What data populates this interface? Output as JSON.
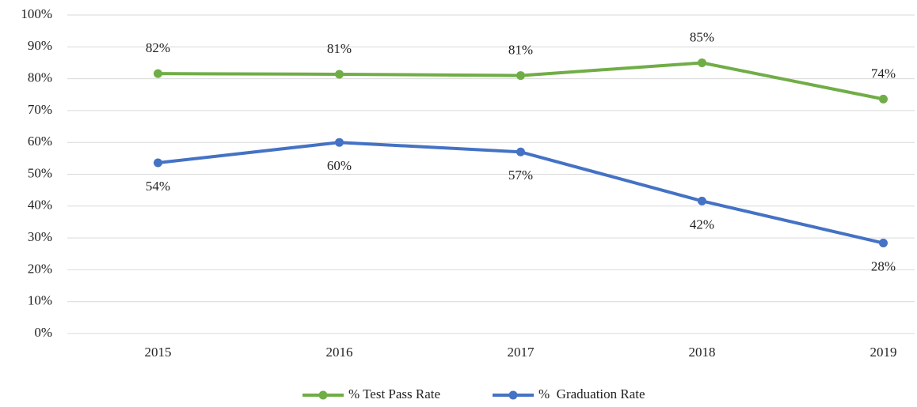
{
  "chart_data": {
    "type": "line",
    "categories": [
      "2015",
      "2016",
      "2017",
      "2018",
      "2019"
    ],
    "series": [
      {
        "name": "% Test Pass Rate",
        "color": "#70ad47",
        "values": [
          81.6,
          81.4,
          81,
          85,
          73.6
        ],
        "value_labels": [
          "82%",
          "81%",
          "81%",
          "85%",
          "74%"
        ]
      },
      {
        "name": "%  Graduation Rate",
        "color": "#4472c4",
        "values": [
          53.6,
          60,
          57,
          41.6,
          28.4
        ],
        "value_labels": [
          "54%",
          "60%",
          "57%",
          "42%",
          "28%"
        ]
      }
    ],
    "ylim": [
      0,
      100
    ],
    "yticks": [
      {
        "value": 0,
        "label": "0%"
      },
      {
        "value": 10,
        "label": "10%"
      },
      {
        "value": 20,
        "label": "20%"
      },
      {
        "value": 30,
        "label": "30%"
      },
      {
        "value": 40,
        "label": "40%"
      },
      {
        "value": 50,
        "label": "50%"
      },
      {
        "value": 60,
        "label": "60%"
      },
      {
        "value": 70,
        "label": "70%"
      },
      {
        "value": 80,
        "label": "80%"
      },
      {
        "value": 90,
        "label": "90%"
      },
      {
        "value": 100,
        "label": "100%"
      }
    ],
    "grid": true,
    "legend": "bottom"
  }
}
